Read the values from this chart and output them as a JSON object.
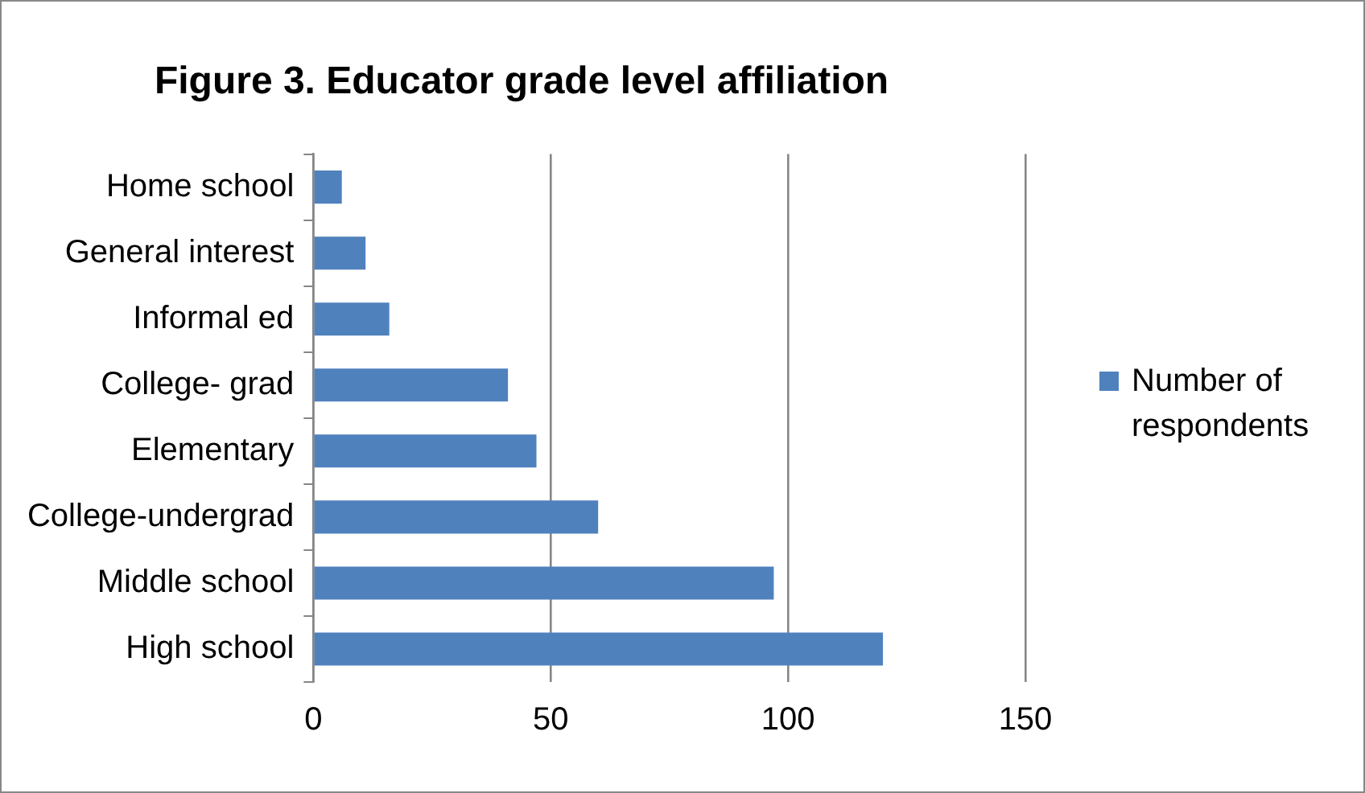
{
  "chart_data": {
    "type": "bar",
    "orientation": "horizontal",
    "title": "Figure 3. Educator grade level affiliation",
    "categories": [
      "Home school",
      "General interest",
      "Informal ed",
      "College- grad",
      "Elementary",
      "College-undergrad",
      "Middle school",
      "High school"
    ],
    "series": [
      {
        "name": "Number of respondents",
        "color": "#4f81bd",
        "values": [
          6,
          11,
          16,
          41,
          47,
          60,
          97,
          120
        ]
      }
    ],
    "xlim": [
      0,
      150
    ],
    "xticks": [
      0,
      50,
      100,
      150
    ],
    "grid": "x",
    "legend": "right"
  }
}
